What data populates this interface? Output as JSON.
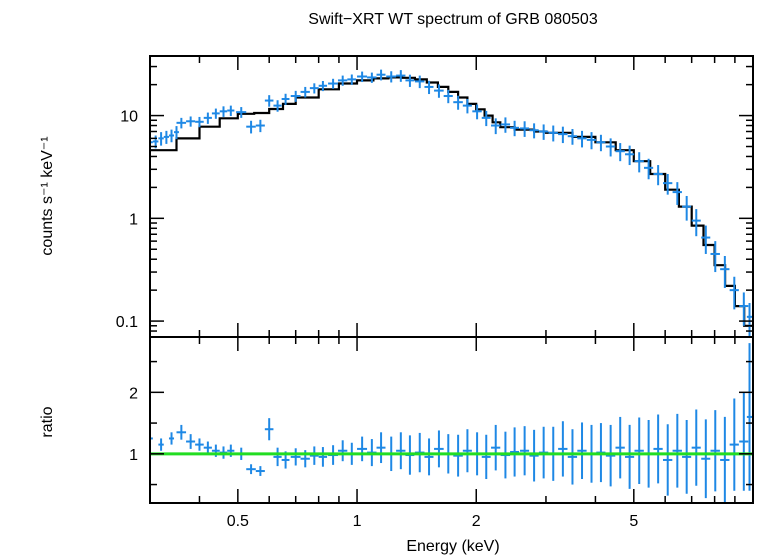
{
  "chart_data": [
    {
      "panel": "spectrum",
      "type": "scatter",
      "title": "Swift−XRT WT spectrum of GRB 080503",
      "xlabel": "Energy (keV)",
      "ylabel": "counts s⁻¹ keV⁻¹",
      "xscale": "log",
      "yscale": "log",
      "xlim": [
        0.3,
        10
      ],
      "ylim": [
        0.07,
        38
      ],
      "x_ticks": [
        0.5,
        1,
        2,
        5
      ],
      "x_tick_labels": [
        "0.5",
        "1",
        "2",
        "5"
      ],
      "y_ticks": [
        0.1,
        1,
        10
      ],
      "y_tick_labels": [
        "0.1",
        "1",
        "10"
      ],
      "colors": {
        "data": "#1e88e5",
        "model": "#000000"
      },
      "data": {
        "x": [
          0.3,
          0.31,
          0.32,
          0.33,
          0.34,
          0.35,
          0.36,
          0.38,
          0.4,
          0.42,
          0.44,
          0.46,
          0.48,
          0.51,
          0.54,
          0.57,
          0.6,
          0.63,
          0.66,
          0.7,
          0.74,
          0.78,
          0.82,
          0.87,
          0.92,
          0.97,
          1.03,
          1.09,
          1.15,
          1.22,
          1.29,
          1.36,
          1.44,
          1.52,
          1.61,
          1.7,
          1.8,
          1.9,
          2.01,
          2.12,
          2.24,
          2.37,
          2.5,
          2.65,
          2.8,
          2.96,
          3.13,
          3.31,
          3.5,
          3.7,
          3.91,
          4.13,
          4.37,
          4.62,
          4.88,
          5.16,
          5.45,
          5.76,
          6.09,
          6.44,
          6.8,
          7.19,
          7.6,
          8.03,
          8.49,
          8.97,
          9.48,
          9.8
        ],
        "y": [
          5.5,
          5.6,
          6.0,
          6.2,
          6.4,
          6.9,
          8.5,
          8.8,
          8.7,
          9.5,
          10.5,
          11.0,
          11.2,
          10.8,
          7.8,
          8.0,
          14.0,
          12.5,
          14.5,
          15.5,
          17.0,
          18.5,
          19.5,
          20.5,
          22.0,
          22.5,
          24.0,
          23.5,
          25.0,
          24.0,
          24.5,
          22.0,
          21.5,
          19.0,
          17.5,
          15.5,
          13.5,
          12.5,
          11.0,
          9.5,
          8.0,
          8.2,
          7.6,
          7.5,
          7.2,
          7.0,
          6.8,
          6.6,
          6.3,
          6.0,
          5.8,
          5.5,
          5.0,
          4.5,
          4.2,
          3.6,
          3.1,
          2.7,
          2.2,
          1.8,
          1.3,
          0.95,
          0.65,
          0.45,
          0.32,
          0.2,
          0.14,
          0.11
        ],
        "xerr": [
          0.005,
          0.005,
          0.005,
          0.005,
          0.005,
          0.005,
          0.01,
          0.01,
          0.01,
          0.01,
          0.01,
          0.01,
          0.01,
          0.015,
          0.015,
          0.015,
          0.015,
          0.015,
          0.015,
          0.02,
          0.02,
          0.02,
          0.02,
          0.025,
          0.025,
          0.025,
          0.03,
          0.03,
          0.03,
          0.035,
          0.035,
          0.035,
          0.04,
          0.04,
          0.045,
          0.045,
          0.05,
          0.05,
          0.055,
          0.055,
          0.06,
          0.065,
          0.065,
          0.07,
          0.075,
          0.08,
          0.085,
          0.09,
          0.095,
          0.1,
          0.105,
          0.11,
          0.12,
          0.125,
          0.13,
          0.14,
          0.145,
          0.155,
          0.165,
          0.175,
          0.18,
          0.19,
          0.2,
          0.22,
          0.23,
          0.24,
          0.25,
          0.15
        ],
        "yerr": [
          0.8,
          0.8,
          0.9,
          0.9,
          0.9,
          1.0,
          1.0,
          1.0,
          1.0,
          1.2,
          1.2,
          1.3,
          1.3,
          1.3,
          1.1,
          1.1,
          1.8,
          1.6,
          1.8,
          1.9,
          2.0,
          2.1,
          2.2,
          2.3,
          2.5,
          2.6,
          2.8,
          2.7,
          3.0,
          3.0,
          3.2,
          3.0,
          3.0,
          2.8,
          2.6,
          2.3,
          2.1,
          2.0,
          1.8,
          1.6,
          1.4,
          1.4,
          1.3,
          1.3,
          1.2,
          1.2,
          1.2,
          1.2,
          1.1,
          1.1,
          1.1,
          1.0,
          1.0,
          0.9,
          0.9,
          0.8,
          0.7,
          0.6,
          0.5,
          0.45,
          0.35,
          0.28,
          0.2,
          0.15,
          0.11,
          0.07,
          0.05,
          0.04
        ]
      },
      "model": {
        "x": [
          0.3,
          0.35,
          0.4,
          0.45,
          0.5,
          0.55,
          0.6,
          0.65,
          0.7,
          0.8,
          0.9,
          1.0,
          1.1,
          1.2,
          1.3,
          1.4,
          1.5,
          1.6,
          1.7,
          1.8,
          1.9,
          2.0,
          2.1,
          2.2,
          2.3,
          2.5,
          2.8,
          3.0,
          3.5,
          4.0,
          4.5,
          5.0,
          5.5,
          6.0,
          6.5,
          7.0,
          7.5,
          8.0,
          8.5,
          9.0,
          9.5,
          10.0
        ],
        "y": [
          4.6,
          6.0,
          7.8,
          9.4,
          10.4,
          10.6,
          11.6,
          13.0,
          15.0,
          18.0,
          20.5,
          22.0,
          23.0,
          23.5,
          23.3,
          22.5,
          21.0,
          19.0,
          17.0,
          15.0,
          13.0,
          11.5,
          10.0,
          8.6,
          7.7,
          7.3,
          7.0,
          6.8,
          6.2,
          5.5,
          4.6,
          3.6,
          2.7,
          1.9,
          1.3,
          0.85,
          0.55,
          0.35,
          0.22,
          0.14,
          0.09,
          0.06
        ]
      }
    },
    {
      "panel": "ratio",
      "type": "scatter",
      "xlabel": "Energy (keV)",
      "ylabel": "ratio",
      "xscale": "log",
      "xlim": [
        0.3,
        10
      ],
      "ylim": [
        0.2,
        2.9
      ],
      "y_ticks": [
        1,
        2
      ],
      "y_tick_labels": [
        "1",
        "2"
      ],
      "reference_line": 1,
      "colors": {
        "data": "#1e88e5",
        "reference": "#22dd22"
      },
      "data": {
        "x": [
          0.3,
          0.32,
          0.34,
          0.36,
          0.38,
          0.4,
          0.42,
          0.44,
          0.46,
          0.48,
          0.51,
          0.54,
          0.57,
          0.6,
          0.63,
          0.66,
          0.7,
          0.74,
          0.78,
          0.82,
          0.87,
          0.92,
          0.97,
          1.03,
          1.09,
          1.15,
          1.22,
          1.29,
          1.36,
          1.44,
          1.52,
          1.61,
          1.7,
          1.8,
          1.9,
          2.01,
          2.12,
          2.24,
          2.37,
          2.5,
          2.65,
          2.8,
          2.96,
          3.13,
          3.31,
          3.5,
          3.7,
          3.91,
          4.13,
          4.37,
          4.62,
          4.88,
          5.16,
          5.45,
          5.76,
          6.09,
          6.44,
          6.8,
          7.19,
          7.6,
          8.03,
          8.49,
          8.97,
          9.48,
          9.8
        ],
        "y": [
          1.25,
          1.15,
          1.25,
          1.35,
          1.2,
          1.15,
          1.1,
          1.05,
          1.02,
          1.05,
          1.0,
          0.75,
          0.72,
          1.4,
          0.95,
          0.9,
          0.95,
          0.92,
          0.97,
          0.95,
          0.98,
          1.05,
          1.0,
          1.08,
          1.02,
          1.1,
          1.0,
          1.05,
          0.98,
          1.02,
          0.95,
          1.08,
          1.0,
          0.97,
          1.05,
          1.0,
          0.95,
          1.1,
          0.98,
          1.03,
          1.05,
          0.97,
          1.02,
          1.0,
          1.08,
          0.95,
          1.05,
          1.0,
          1.02,
          0.97,
          1.1,
          0.95,
          1.05,
          1.0,
          1.08,
          0.9,
          1.05,
          0.95,
          1.1,
          0.92,
          1.05,
          0.9,
          1.15,
          1.2,
          1.6
        ],
        "xerr": [
          0.005,
          0.005,
          0.005,
          0.01,
          0.01,
          0.01,
          0.01,
          0.01,
          0.01,
          0.01,
          0.015,
          0.015,
          0.015,
          0.015,
          0.015,
          0.015,
          0.02,
          0.02,
          0.02,
          0.02,
          0.025,
          0.025,
          0.025,
          0.03,
          0.03,
          0.03,
          0.035,
          0.035,
          0.035,
          0.04,
          0.04,
          0.045,
          0.045,
          0.05,
          0.05,
          0.055,
          0.055,
          0.06,
          0.065,
          0.065,
          0.07,
          0.075,
          0.08,
          0.085,
          0.09,
          0.095,
          0.1,
          0.105,
          0.11,
          0.12,
          0.125,
          0.13,
          0.14,
          0.145,
          0.155,
          0.165,
          0.175,
          0.18,
          0.19,
          0.2,
          0.22,
          0.23,
          0.24,
          0.25,
          0.15
        ],
        "yerr": [
          0.1,
          0.1,
          0.1,
          0.12,
          0.12,
          0.1,
          0.1,
          0.1,
          0.1,
          0.1,
          0.1,
          0.08,
          0.08,
          0.18,
          0.15,
          0.14,
          0.14,
          0.14,
          0.15,
          0.16,
          0.16,
          0.17,
          0.18,
          0.2,
          0.22,
          0.25,
          0.28,
          0.3,
          0.32,
          0.32,
          0.3,
          0.3,
          0.32,
          0.34,
          0.35,
          0.35,
          0.36,
          0.37,
          0.38,
          0.4,
          0.4,
          0.42,
          0.42,
          0.44,
          0.45,
          0.45,
          0.46,
          0.47,
          0.48,
          0.5,
          0.5,
          0.52,
          0.54,
          0.55,
          0.56,
          0.58,
          0.6,
          0.6,
          0.62,
          0.64,
          0.66,
          0.7,
          0.75,
          0.8,
          1.2
        ]
      }
    }
  ]
}
